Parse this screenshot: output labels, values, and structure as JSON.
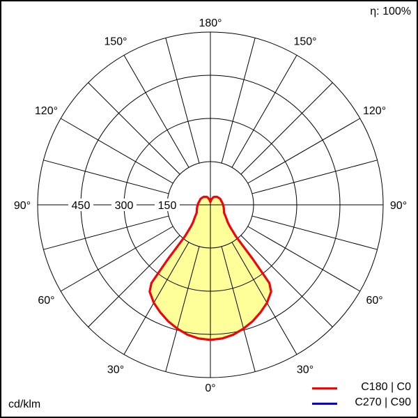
{
  "chart_data": {
    "type": "polar",
    "efficiency": "η: 100%",
    "unit": "cd/klm",
    "r_max": 600,
    "rings": [
      150,
      300,
      450,
      600
    ],
    "ring_labels": [
      "150",
      "300",
      "450"
    ],
    "angle_labels": [
      {
        "angle": 0,
        "text": "0°"
      },
      {
        "angle": 30,
        "text": "30°"
      },
      {
        "angle": -30,
        "text": "30°"
      },
      {
        "angle": 60,
        "text": "60°"
      },
      {
        "angle": -60,
        "text": "60°"
      },
      {
        "angle": 90,
        "text": "90°"
      },
      {
        "angle": -90,
        "text": "90°"
      },
      {
        "angle": 120,
        "text": "120°"
      },
      {
        "angle": -120,
        "text": "120°"
      },
      {
        "angle": 150,
        "text": "150°"
      },
      {
        "angle": -150,
        "text": "150°"
      },
      {
        "angle": 180,
        "text": "180°"
      }
    ],
    "radial_step_deg": 15,
    "grid": true,
    "legend_position": "bottom-right",
    "fill_color": "#ffff99",
    "series": [
      {
        "name": "C180 | C0",
        "color": "#ff0000",
        "angles": [
          0,
          5,
          10,
          15,
          20,
          25,
          30,
          35,
          37,
          38,
          39,
          42,
          45,
          50,
          55,
          60,
          70,
          80,
          90,
          100,
          110,
          120,
          130,
          140,
          150,
          160,
          170,
          180
        ],
        "values": [
          469,
          466,
          458,
          445,
          430,
          412,
          393,
          368,
          340,
          240,
          140,
          100,
          85,
          72,
          62,
          55,
          50,
          47,
          44,
          42,
          40,
          40,
          38,
          36,
          32,
          28,
          18,
          10
        ]
      },
      {
        "name": "C270 | C90",
        "color": "#0000cc",
        "angles": [
          0,
          5,
          10,
          15,
          20,
          25,
          30,
          35,
          37,
          38,
          39,
          42,
          45,
          50,
          55,
          60,
          70,
          80,
          90,
          100,
          110,
          120,
          130,
          140,
          150,
          160,
          170,
          180
        ],
        "values": [
          469,
          466,
          458,
          445,
          430,
          412,
          393,
          368,
          340,
          240,
          140,
          100,
          85,
          72,
          62,
          55,
          50,
          47,
          44,
          42,
          40,
          40,
          38,
          36,
          32,
          28,
          18,
          10
        ]
      }
    ]
  }
}
